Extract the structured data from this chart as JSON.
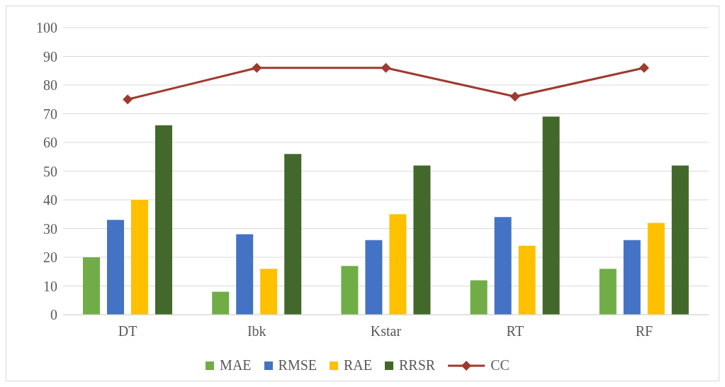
{
  "chart_data": {
    "type": "bar",
    "categories": [
      "DT",
      "Ibk",
      "Kstar",
      "RT",
      "RF"
    ],
    "series": [
      {
        "name": "MAE",
        "color": "#70ad47",
        "values": [
          20,
          8,
          17,
          12,
          16
        ]
      },
      {
        "name": "RMSE",
        "color": "#4472c4",
        "values": [
          33,
          28,
          26,
          34,
          26
        ]
      },
      {
        "name": "RAE",
        "color": "#ffc000",
        "values": [
          40,
          16,
          35,
          24,
          32
        ]
      },
      {
        "name": "RRSR",
        "color": "#43682b",
        "values": [
          66,
          56,
          52,
          69,
          52
        ]
      },
      {
        "name": "CC",
        "type": "line",
        "color": "#9e3a2e",
        "marker": "diamond",
        "values": [
          75,
          86,
          86,
          76,
          86
        ]
      }
    ],
    "ylim": [
      0,
      100
    ],
    "yticks": [
      0,
      10,
      20,
      30,
      40,
      50,
      60,
      70,
      80,
      90,
      100
    ],
    "grid": "y",
    "legend": "bottom"
  }
}
